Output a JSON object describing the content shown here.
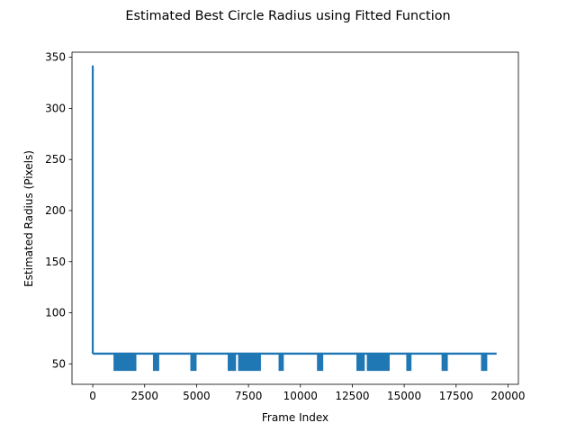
{
  "chart_data": {
    "type": "line",
    "title": "Estimated Best Circle Radius using Fitted Function",
    "xlabel": "Frame Index",
    "ylabel": "Estimated Radius (Pixels)",
    "xlim": [
      -1000,
      20500
    ],
    "ylim": [
      30,
      355
    ],
    "xticks": [
      0,
      2500,
      5000,
      7500,
      10000,
      12500,
      15000,
      17500,
      20000
    ],
    "xtick_labels": [
      "0",
      "2500",
      "5000",
      "7500",
      "10000",
      "12500",
      "15000",
      "17500",
      "20000"
    ],
    "yticks": [
      50,
      100,
      150,
      200,
      250,
      300,
      350
    ],
    "ytick_labels": [
      "50",
      "100",
      "150",
      "200",
      "250",
      "300",
      "350"
    ],
    "grid": false,
    "series": [
      {
        "color": "#1f77b4",
        "baseline": 60,
        "x_start": 0,
        "x_end": 19450,
        "start_spike": {
          "x": 0,
          "y": 342
        },
        "dip_value": 44,
        "dip_intervals": [
          [
            1000,
            2100
          ],
          [
            2900,
            3200
          ],
          [
            4700,
            5000
          ],
          [
            6500,
            6900
          ],
          [
            7000,
            8100
          ],
          [
            8950,
            9200
          ],
          [
            10800,
            11100
          ],
          [
            12700,
            13100
          ],
          [
            13200,
            14300
          ],
          [
            15100,
            15350
          ],
          [
            16800,
            17100
          ],
          [
            18700,
            19000
          ]
        ]
      }
    ]
  }
}
